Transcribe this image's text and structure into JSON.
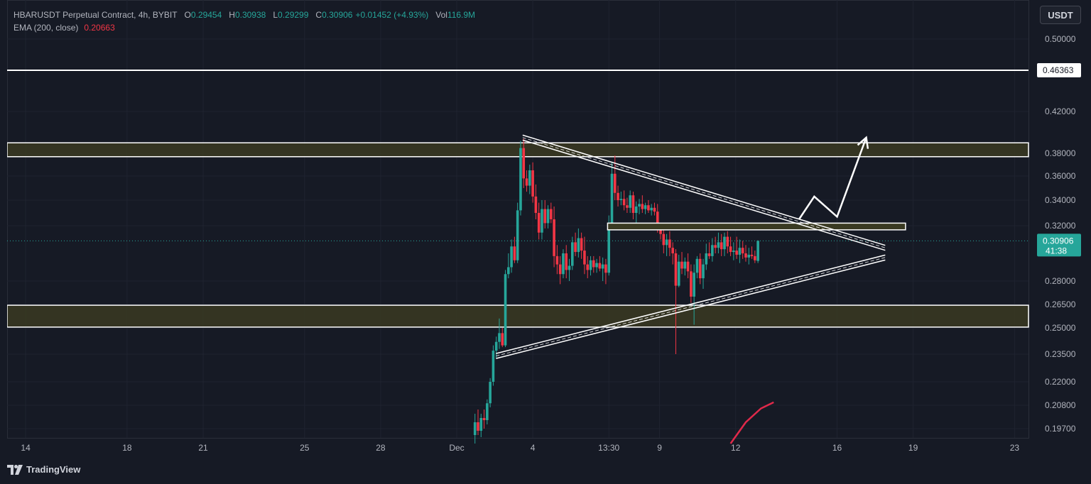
{
  "legend": {
    "symbol": "HBARUSDT Perpetual Contract, 4h, BYBIT",
    "open_key": "O",
    "open": "0.29454",
    "high_key": "H",
    "high": "0.30938",
    "low_key": "L",
    "low": "0.29299",
    "close_key": "C",
    "close": "0.30906",
    "change": "+0.01452 (+4.93%)",
    "vol_key": "Vol",
    "vol": "116.9M",
    "ema_label": "EMA (200, close)",
    "ema_value": "0.20663"
  },
  "currency_button": "USDT",
  "footer": {
    "brand": "TradingView"
  },
  "colors": {
    "background": "#161a25",
    "up": "#26a69a",
    "down": "#f23645",
    "zone_fill": "#3a3a22",
    "line": "#ffffff",
    "ema": "#e0294a"
  },
  "chart_data": {
    "type": "candlestick",
    "timeframe": "4h",
    "y_ticks": [
      "0.50000",
      "0.42000",
      "0.38000",
      "0.36000",
      "0.34000",
      "0.32000",
      "0.28000",
      "0.26500",
      "0.25000",
      "0.23500",
      "0.22000",
      "0.20800",
      "0.19700"
    ],
    "y_tick_values": [
      0.5,
      0.42,
      0.38,
      0.36,
      0.34,
      0.32,
      0.28,
      0.265,
      0.25,
      0.235,
      0.22,
      0.208,
      0.197
    ],
    "x_ticks": [
      "14",
      "18",
      "21",
      "25",
      "28",
      "Dec",
      "4",
      "13:30",
      "9",
      "12",
      "16",
      "19",
      "23"
    ],
    "x_tick_positions": [
      -17,
      -13,
      -10,
      -6,
      -3,
      0,
      3,
      6,
      8,
      11,
      15,
      18,
      22
    ],
    "price_label": "0.46363",
    "price_value": 0.46363,
    "current_price": "0.30906",
    "current_value": 0.30906,
    "countdown": "41:38",
    "ema_points": [
      [
        10.8,
        0.19
      ],
      [
        11.4,
        0.2
      ],
      [
        12.0,
        0.2065
      ],
      [
        12.5,
        0.2095
      ]
    ],
    "zones": [
      {
        "name": "resistance-zone",
        "top": 0.39,
        "bottom": 0.377
      },
      {
        "name": "support-zone",
        "top": 0.2645,
        "bottom": 0.2505
      }
    ],
    "mid_box": {
      "x_start": 5.95,
      "x_end": 17.7,
      "top": 0.322,
      "bottom": 0.317
    },
    "triangle": {
      "upper": [
        [
          2.6,
          0.395
        ],
        [
          16.9,
          0.304
        ]
      ],
      "lower": [
        [
          1.55,
          0.234
        ],
        [
          16.9,
          0.297
        ]
      ]
    },
    "projection": [
      [
        13.5,
        0.325
      ],
      [
        14.1,
        0.343
      ],
      [
        15.0,
        0.327
      ],
      [
        16.15,
        0.395
      ]
    ],
    "candles": [
      [
        0.72,
        0.194,
        0.204,
        0.19,
        0.2
      ],
      [
        0.84,
        0.2,
        0.206,
        0.194,
        0.196
      ],
      [
        0.96,
        0.196,
        0.204,
        0.193,
        0.202
      ],
      [
        1.08,
        0.202,
        0.206,
        0.197,
        0.201
      ],
      [
        1.2,
        0.201,
        0.211,
        0.199,
        0.209
      ],
      [
        1.32,
        0.209,
        0.222,
        0.207,
        0.22
      ],
      [
        1.44,
        0.22,
        0.24,
        0.218,
        0.237
      ],
      [
        1.56,
        0.237,
        0.245,
        0.233,
        0.242
      ],
      [
        1.68,
        0.242,
        0.256,
        0.238,
        0.247
      ],
      [
        1.8,
        0.247,
        0.25,
        0.239,
        0.24
      ],
      [
        1.92,
        0.24,
        0.288,
        0.239,
        0.285
      ],
      [
        2.04,
        0.285,
        0.3,
        0.282,
        0.29
      ],
      [
        2.16,
        0.29,
        0.31,
        0.286,
        0.305
      ],
      [
        2.28,
        0.305,
        0.312,
        0.293,
        0.295
      ],
      [
        2.4,
        0.295,
        0.338,
        0.293,
        0.332
      ],
      [
        2.52,
        0.332,
        0.392,
        0.328,
        0.385
      ],
      [
        2.64,
        0.385,
        0.394,
        0.35,
        0.358
      ],
      [
        2.76,
        0.358,
        0.365,
        0.347,
        0.352
      ],
      [
        2.88,
        0.352,
        0.37,
        0.345,
        0.365
      ],
      [
        3.0,
        0.365,
        0.372,
        0.338,
        0.343
      ],
      [
        3.12,
        0.343,
        0.353,
        0.325,
        0.33
      ],
      [
        3.24,
        0.33,
        0.338,
        0.31,
        0.315
      ],
      [
        3.36,
        0.315,
        0.34,
        0.31,
        0.333
      ],
      [
        3.48,
        0.333,
        0.34,
        0.318,
        0.322
      ],
      [
        3.6,
        0.322,
        0.336,
        0.318,
        0.333
      ],
      [
        3.72,
        0.333,
        0.338,
        0.322,
        0.325
      ],
      [
        3.84,
        0.325,
        0.335,
        0.29,
        0.298
      ],
      [
        3.96,
        0.298,
        0.306,
        0.285,
        0.292
      ],
      [
        4.08,
        0.292,
        0.298,
        0.278,
        0.285
      ],
      [
        4.2,
        0.285,
        0.303,
        0.282,
        0.3
      ],
      [
        4.32,
        0.3,
        0.306,
        0.282,
        0.288
      ],
      [
        4.44,
        0.288,
        0.296,
        0.28,
        0.291
      ],
      [
        4.56,
        0.291,
        0.312,
        0.288,
        0.308
      ],
      [
        4.68,
        0.308,
        0.315,
        0.298,
        0.301
      ],
      [
        4.8,
        0.301,
        0.318,
        0.297,
        0.311
      ],
      [
        4.92,
        0.311,
        0.315,
        0.296,
        0.302
      ],
      [
        5.04,
        0.302,
        0.312,
        0.285,
        0.292
      ],
      [
        5.16,
        0.292,
        0.298,
        0.282,
        0.288
      ],
      [
        5.28,
        0.288,
        0.298,
        0.284,
        0.295
      ],
      [
        5.4,
        0.295,
        0.298,
        0.286,
        0.29
      ],
      [
        5.52,
        0.29,
        0.296,
        0.286,
        0.293
      ],
      [
        5.64,
        0.293,
        0.298,
        0.287,
        0.289
      ],
      [
        5.76,
        0.289,
        0.297,
        0.28,
        0.292
      ],
      [
        5.88,
        0.292,
        0.296,
        0.278,
        0.286
      ],
      [
        6.0,
        0.286,
        0.328,
        0.284,
        0.322
      ],
      [
        6.12,
        0.322,
        0.372,
        0.318,
        0.362
      ],
      [
        6.24,
        0.362,
        0.378,
        0.34,
        0.346
      ],
      [
        6.36,
        0.346,
        0.352,
        0.335,
        0.34
      ],
      [
        6.48,
        0.34,
        0.347,
        0.336,
        0.341
      ],
      [
        6.6,
        0.341,
        0.348,
        0.332,
        0.336
      ],
      [
        6.72,
        0.336,
        0.342,
        0.33,
        0.334
      ],
      [
        6.84,
        0.334,
        0.348,
        0.33,
        0.344
      ],
      [
        6.96,
        0.344,
        0.347,
        0.325,
        0.33
      ],
      [
        7.08,
        0.33,
        0.339,
        0.321,
        0.335
      ],
      [
        7.2,
        0.335,
        0.341,
        0.329,
        0.337
      ],
      [
        7.32,
        0.337,
        0.344,
        0.33,
        0.333
      ],
      [
        7.44,
        0.333,
        0.338,
        0.329,
        0.336
      ],
      [
        7.56,
        0.336,
        0.34,
        0.33,
        0.332
      ],
      [
        7.68,
        0.332,
        0.337,
        0.328,
        0.334
      ],
      [
        7.8,
        0.334,
        0.338,
        0.328,
        0.331
      ],
      [
        7.92,
        0.331,
        0.337,
        0.315,
        0.318
      ],
      [
        8.04,
        0.318,
        0.322,
        0.31,
        0.314
      ],
      [
        8.16,
        0.314,
        0.318,
        0.3,
        0.306
      ],
      [
        8.28,
        0.306,
        0.314,
        0.298,
        0.31
      ],
      [
        8.4,
        0.31,
        0.316,
        0.298,
        0.304
      ],
      [
        8.52,
        0.304,
        0.308,
        0.292,
        0.3
      ],
      [
        8.64,
        0.3,
        0.303,
        0.235,
        0.277
      ],
      [
        8.76,
        0.277,
        0.299,
        0.276,
        0.294
      ],
      [
        8.88,
        0.294,
        0.301,
        0.285,
        0.289
      ],
      [
        9.0,
        0.289,
        0.297,
        0.284,
        0.294
      ],
      [
        9.12,
        0.294,
        0.3,
        0.282,
        0.287
      ],
      [
        9.24,
        0.287,
        0.292,
        0.266,
        0.27
      ],
      [
        9.36,
        0.27,
        0.292,
        0.252,
        0.286
      ],
      [
        9.48,
        0.286,
        0.298,
        0.282,
        0.296
      ],
      [
        9.6,
        0.296,
        0.3,
        0.278,
        0.282
      ],
      [
        9.72,
        0.282,
        0.296,
        0.275,
        0.292
      ],
      [
        9.84,
        0.292,
        0.307,
        0.288,
        0.3
      ],
      [
        9.96,
        0.3,
        0.308,
        0.296,
        0.298
      ],
      [
        10.08,
        0.298,
        0.311,
        0.294,
        0.306
      ],
      [
        10.2,
        0.306,
        0.312,
        0.3,
        0.304
      ],
      [
        10.32,
        0.304,
        0.315,
        0.3,
        0.308
      ],
      [
        10.44,
        0.308,
        0.314,
        0.298,
        0.303
      ],
      [
        10.56,
        0.303,
        0.315,
        0.298,
        0.312
      ],
      [
        10.68,
        0.312,
        0.316,
        0.3,
        0.305
      ],
      [
        10.8,
        0.305,
        0.312,
        0.298,
        0.301
      ],
      [
        10.92,
        0.301,
        0.308,
        0.295,
        0.302
      ],
      [
        11.04,
        0.302,
        0.312,
        0.296,
        0.299
      ],
      [
        11.16,
        0.299,
        0.31,
        0.293,
        0.304
      ],
      [
        11.28,
        0.304,
        0.309,
        0.296,
        0.3
      ],
      [
        11.4,
        0.3,
        0.306,
        0.294,
        0.297
      ],
      [
        11.52,
        0.297,
        0.304,
        0.292,
        0.299
      ],
      [
        11.64,
        0.299,
        0.305,
        0.296,
        0.298
      ],
      [
        11.76,
        0.298,
        0.302,
        0.293,
        0.295
      ],
      [
        11.88,
        0.29454,
        0.30938,
        0.29299,
        0.30906
      ]
    ]
  }
}
